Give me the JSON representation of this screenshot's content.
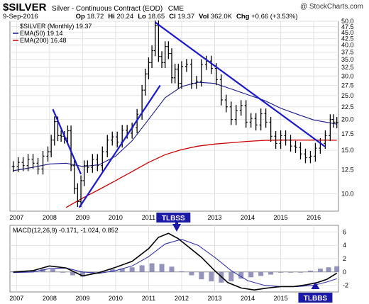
{
  "header": {
    "symbol": "$SILVER",
    "description": "Silver - Continuous Contract (EOD)",
    "exchange": "CME",
    "brand": "@ StockCharts.com",
    "date": "9-Sep-2016",
    "quote": [
      {
        "label": "Op",
        "value": "18.72"
      },
      {
        "label": "Hi",
        "value": "20.24"
      },
      {
        "label": "Lo",
        "value": "18.65"
      },
      {
        "label": "Cl",
        "value": "19.37"
      },
      {
        "label": "Vol",
        "value": "362.0K"
      },
      {
        "label": "Chg",
        "value": "+0.66 (+3.53%)"
      }
    ]
  },
  "colors": {
    "ema50": "#1a1a8c",
    "ema200": "#cc0000",
    "trendline": "#1a1acc",
    "bar": "#000000",
    "histogram": "#8080b0",
    "macd": "#000000",
    "signal": "#3333aa",
    "tlbss": "#1a1aa6"
  },
  "chart_data": [
    {
      "type": "line",
      "title": "",
      "legend_position": "top-left",
      "legend": [
        {
          "key": "price",
          "text": "$SILVER (Monthly) 19.37"
        },
        {
          "key": "ema50",
          "text": "EMA(50) 19.14"
        },
        {
          "key": "ema200",
          "text": "EMA(200) 16.48"
        }
      ],
      "yscale": "log",
      "ylim": [
        8.5,
        50
      ],
      "yticks": [
        "50.0",
        "47.5",
        "45.0",
        "42.5",
        "40.0",
        "37.5",
        "35.0",
        "32.5",
        "30.0",
        "27.5",
        "25.0",
        "22.5",
        "20.0",
        "17.5",
        "15.0",
        "12.5",
        "10.0"
      ],
      "xlim": [
        2006.8,
        2016.75
      ],
      "xticks": [
        "2007",
        "2008",
        "2009",
        "2010",
        "2011",
        "2012",
        "2013",
        "2014",
        "2015",
        "2016"
      ],
      "grid": true,
      "annotation": "TLBSS",
      "series": [
        {
          "key": "price",
          "style": "ohlc-bars",
          "x": [
            2006.9,
            2007.05,
            2007.2,
            2007.35,
            2007.5,
            2007.65,
            2007.8,
            2007.95,
            2008.05,
            2008.15,
            2008.25,
            2008.35,
            2008.45,
            2008.55,
            2008.65,
            2008.75,
            2008.85,
            2008.95,
            2009.05,
            2009.15,
            2009.3,
            2009.45,
            2009.6,
            2009.75,
            2009.9,
            2010.05,
            2010.2,
            2010.35,
            2010.5,
            2010.65,
            2010.8,
            2010.9,
            2011.0,
            2011.1,
            2011.2,
            2011.3,
            2011.4,
            2011.5,
            2011.6,
            2011.7,
            2011.8,
            2011.9,
            2012.0,
            2012.15,
            2012.3,
            2012.45,
            2012.6,
            2012.75,
            2012.9,
            2013.05,
            2013.2,
            2013.35,
            2013.5,
            2013.65,
            2013.8,
            2013.95,
            2014.1,
            2014.25,
            2014.4,
            2014.55,
            2014.7,
            2014.85,
            2015.0,
            2015.15,
            2015.3,
            2015.45,
            2015.6,
            2015.75,
            2015.9,
            2016.05,
            2016.2,
            2016.35,
            2016.5,
            2016.6,
            2016.7
          ],
          "values": [
            12.9,
            13.4,
            13.0,
            13.8,
            13.3,
            12.6,
            14.2,
            14.8,
            16.5,
            19.6,
            17.2,
            17.1,
            16.8,
            18.0,
            13.0,
            10.5,
            9.3,
            11.3,
            13.0,
            12.8,
            13.8,
            13.0,
            14.8,
            16.5,
            17.0,
            16.2,
            18.1,
            17.6,
            18.5,
            21.0,
            26.3,
            30.6,
            34.0,
            38.0,
            48.0,
            36.0,
            34.0,
            39.5,
            37.0,
            29.5,
            32.0,
            28.0,
            32.8,
            33.5,
            28.0,
            28.6,
            33.4,
            34.5,
            32.2,
            29.0,
            24.0,
            22.5,
            20.0,
            21.8,
            22.8,
            19.5,
            20.2,
            19.0,
            21.1,
            19.5,
            17.1,
            16.0,
            17.2,
            16.5,
            15.6,
            15.4,
            14.5,
            14.0,
            14.2,
            15.3,
            16.0,
            17.2,
            20.0,
            19.5,
            19.4
          ]
        },
        {
          "key": "ema50",
          "style": "line",
          "x": [
            2006.9,
            2007.5,
            2008.0,
            2008.5,
            2009.0,
            2009.5,
            2010.0,
            2010.5,
            2011.0,
            2011.5,
            2012.0,
            2012.5,
            2013.0,
            2013.5,
            2014.0,
            2014.5,
            2015.0,
            2015.5,
            2016.0,
            2016.7
          ],
          "values": [
            12.4,
            12.8,
            13.2,
            13.3,
            12.9,
            13.1,
            14.2,
            16.4,
            20.0,
            24.5,
            27.2,
            28.3,
            28.0,
            26.6,
            25.2,
            23.9,
            22.2,
            21.0,
            19.9,
            19.14
          ]
        },
        {
          "key": "ema200",
          "style": "line",
          "x": [
            2008.5,
            2009.0,
            2009.5,
            2010.0,
            2010.5,
            2011.0,
            2011.5,
            2012.0,
            2012.5,
            2013.0,
            2013.5,
            2014.0,
            2014.5,
            2015.0,
            2015.5,
            2016.0,
            2016.7
          ],
          "values": [
            8.8,
            9.6,
            10.4,
            11.3,
            12.3,
            13.4,
            14.4,
            15.1,
            15.6,
            15.9,
            16.1,
            16.3,
            16.45,
            16.5,
            16.5,
            16.5,
            16.48
          ]
        }
      ],
      "trendlines": [
        {
          "x": [
            2008.1,
            2008.95
          ],
          "values": [
            22.0,
            12.0
          ]
        },
        {
          "x": [
            2008.9,
            2011.35
          ],
          "values": [
            8.8,
            27.5
          ]
        },
        {
          "x": [
            2011.2,
            2016.35
          ],
          "values": [
            49.5,
            15.5
          ]
        }
      ]
    },
    {
      "type": "line",
      "title": "",
      "legend": [
        {
          "key": "macd_label",
          "text": "MACD(12,26,9) -0.171, -1.024, 0.852"
        }
      ],
      "ylim": [
        -3,
        7
      ],
      "yticks": [
        "6",
        "4",
        "2",
        "0",
        "-2"
      ],
      "xlim": [
        2006.8,
        2016.75
      ],
      "xticks": [
        "2007",
        "2008",
        "2009",
        "2010",
        "2011",
        "2012",
        "2013",
        "2014",
        "2015",
        "2016"
      ],
      "annotations": [
        "TLBSS",
        "TLBBS"
      ],
      "series": [
        {
          "key": "macd",
          "style": "line",
          "x": [
            2006.9,
            2007.5,
            2008.0,
            2008.5,
            2009.0,
            2009.5,
            2010.0,
            2010.5,
            2011.0,
            2011.3,
            2011.6,
            2011.9,
            2012.2,
            2012.6,
            2013.0,
            2013.4,
            2013.8,
            2014.2,
            2014.6,
            2015.0,
            2015.4,
            2015.8,
            2016.1,
            2016.4,
            2016.7
          ],
          "values": [
            0.0,
            0.2,
            0.9,
            0.6,
            -0.6,
            -0.1,
            0.7,
            1.6,
            3.5,
            5.2,
            5.8,
            5.0,
            3.8,
            2.2,
            0.2,
            -1.6,
            -2.4,
            -2.7,
            -2.4,
            -2.2,
            -2.2,
            -1.9,
            -1.6,
            -1.1,
            -0.171
          ]
        },
        {
          "key": "signal",
          "style": "line",
          "x": [
            2006.9,
            2007.5,
            2008.0,
            2008.5,
            2009.0,
            2009.5,
            2010.0,
            2010.5,
            2011.0,
            2011.5,
            2012.0,
            2012.5,
            2013.0,
            2013.5,
            2014.0,
            2014.5,
            2015.0,
            2015.5,
            2016.0,
            2016.4,
            2016.7
          ],
          "values": [
            -0.1,
            0.0,
            0.5,
            0.6,
            0.0,
            -0.2,
            0.2,
            0.9,
            2.3,
            4.2,
            4.9,
            4.0,
            2.2,
            0.2,
            -1.3,
            -2.0,
            -2.2,
            -2.2,
            -2.0,
            -1.5,
            -1.024
          ]
        },
        {
          "key": "histogram",
          "style": "bars",
          "x": [
            2006.9,
            2007.2,
            2007.5,
            2007.8,
            2008.1,
            2008.4,
            2008.7,
            2009.0,
            2009.3,
            2009.6,
            2009.9,
            2010.2,
            2010.5,
            2010.8,
            2011.1,
            2011.4,
            2011.7,
            2012.0,
            2012.3,
            2012.6,
            2012.9,
            2013.2,
            2013.5,
            2013.8,
            2014.1,
            2014.4,
            2014.7,
            2015.0,
            2015.3,
            2015.6,
            2015.9,
            2016.2,
            2016.45,
            2016.7
          ],
          "values": [
            0.1,
            0.2,
            0.2,
            0.4,
            0.4,
            0.0,
            -0.5,
            -0.7,
            -0.2,
            0.1,
            0.4,
            0.5,
            0.7,
            1.0,
            1.3,
            1.2,
            0.8,
            0.1,
            -0.5,
            -1.1,
            -1.4,
            -1.6,
            -1.4,
            -1.0,
            -0.8,
            -0.6,
            -0.4,
            -0.1,
            -0.1,
            0.0,
            0.2,
            0.5,
            0.7,
            0.852
          ]
        }
      ]
    }
  ]
}
